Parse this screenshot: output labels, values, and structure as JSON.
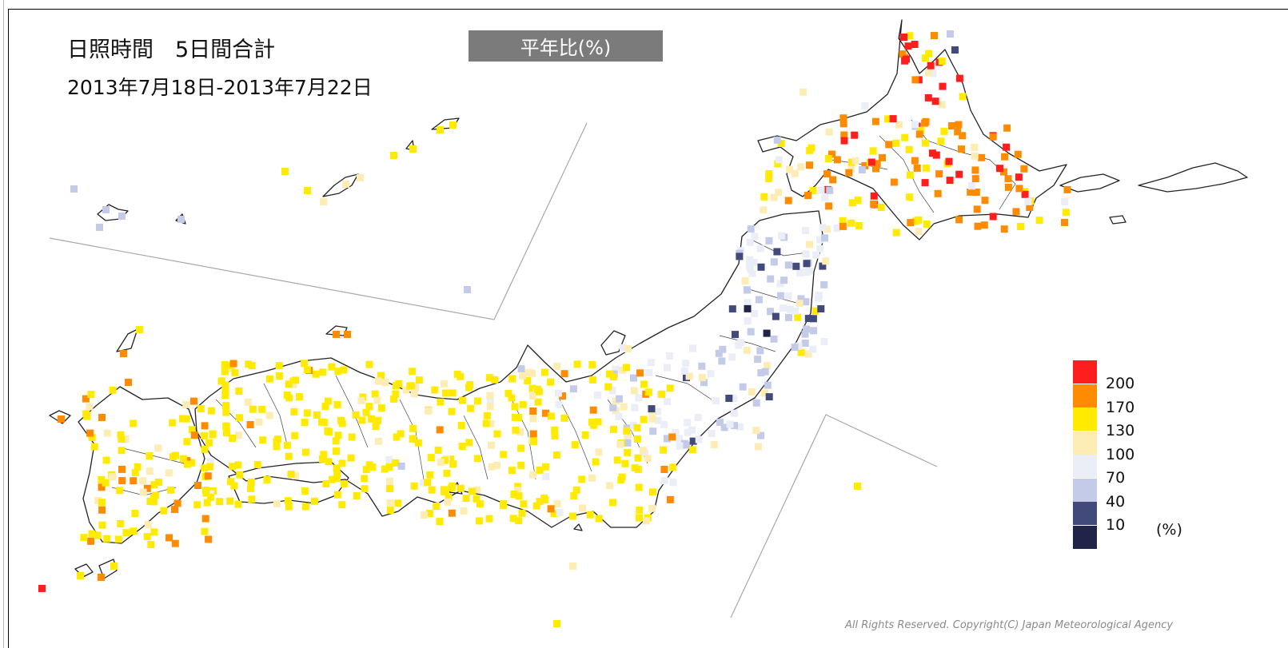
{
  "title": "日照時間　5日間合計",
  "date_range": "2013年7月18日-2013年7月22日",
  "metric_badge": "平年比(%)",
  "legend": {
    "unit": "(%)",
    "bins": [
      {
        "label": "200",
        "color": "#ff1e1e"
      },
      {
        "label": "170",
        "color": "#ff8c00"
      },
      {
        "label": "130",
        "color": "#ffea00"
      },
      {
        "label": "100",
        "color": "#fdedb5"
      },
      {
        "label": "70",
        "color": "#ebedf7"
      },
      {
        "label": "40",
        "color": "#c4cbe8"
      },
      {
        "label": "10",
        "color": "#414a7a"
      },
      {
        "label": "",
        "color": "#1f2448"
      }
    ]
  },
  "copyright": "All Rights Reserved. Copyright(C) Japan Meteorological Agency"
}
